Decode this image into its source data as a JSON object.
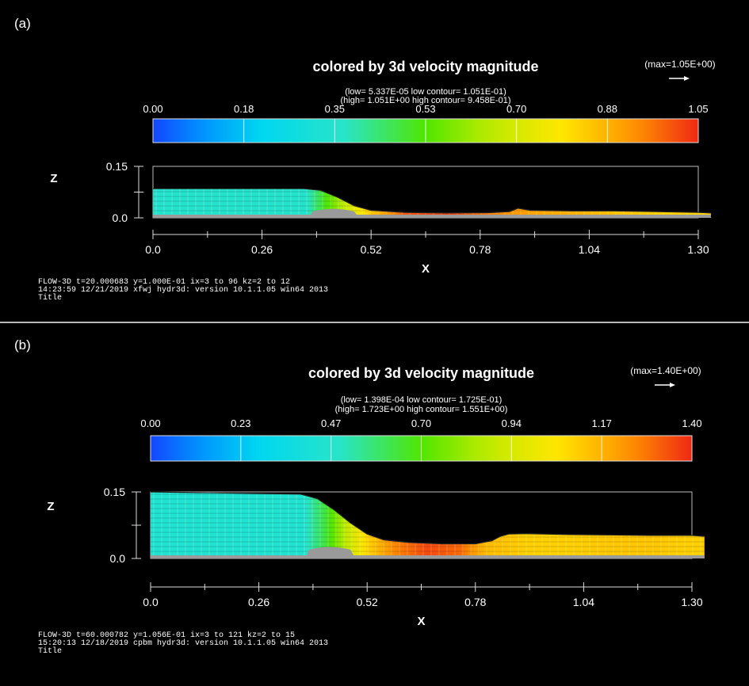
{
  "chart_data": [
    {
      "type": "heatmap",
      "panel_label": "(a)",
      "title": "colored by 3d velocity magnitude",
      "max_label": "(max=1.05E+00)",
      "range_line1": "(low= 5.337E-05   low contour= 1.051E-01)",
      "range_line2": "(high= 1.051E+00  high contour= 9.458E-01)",
      "colorbar_ticks": [
        "0.00",
        "0.18",
        "0.35",
        "0.53",
        "0.70",
        "0.88",
        "1.05"
      ],
      "colorbar_range": [
        0,
        1.05
      ],
      "xlabel": "X",
      "ylabel": "Z",
      "x_ticks": [
        "0.0",
        "0.26",
        "0.52",
        "0.78",
        "1.04",
        "1.30"
      ],
      "z_ticks": [
        "0.15",
        "0.0"
      ],
      "xlim": [
        0,
        1.3
      ],
      "zlim": [
        0,
        0.15
      ],
      "free_surface_x": [
        0,
        0.36,
        0.4,
        0.44,
        0.48,
        0.52,
        0.6,
        0.7,
        0.8,
        0.85,
        0.87,
        0.9,
        1.0,
        1.1,
        1.2,
        1.3,
        1.33
      ],
      "free_surface_z": [
        0.085,
        0.085,
        0.08,
        0.06,
        0.035,
        0.022,
        0.016,
        0.014,
        0.015,
        0.018,
        0.028,
        0.022,
        0.02,
        0.02,
        0.018,
        0.016,
        0.014
      ],
      "velocity_x": [
        0,
        0.36,
        0.42,
        0.47,
        0.52,
        0.6,
        0.7,
        0.8,
        0.9,
        1.0,
        1.1,
        1.2,
        1.3
      ],
      "velocity": [
        0.35,
        0.35,
        0.55,
        0.72,
        0.85,
        1.0,
        1.02,
        0.95,
        0.9,
        0.88,
        0.85,
        0.83,
        0.82
      ],
      "footer_line1": "FLOW-3D  t=20.000683  y=1.000E-01  ix=3 to 96  kz=2 to 12",
      "footer_line2": "14:23:59  12/21/2019 xfwj      hydr3d:   version  10.1.1.05 win64 2013",
      "footer_line3": "Title"
    },
    {
      "type": "heatmap",
      "panel_label": "(b)",
      "title": "colored by 3d velocity magnitude",
      "max_label": "(max=1.40E+00)",
      "range_line1": "(low= 1.398E-04   low contour= 1.725E-01)",
      "range_line2": "(high= 1.723E+00  high contour= 1.551E+00)",
      "colorbar_ticks": [
        "0.00",
        "0.23",
        "0.47",
        "0.70",
        "0.94",
        "1.17",
        "1.40"
      ],
      "colorbar_range": [
        0,
        1.4
      ],
      "xlabel": "X",
      "ylabel": "Z",
      "x_ticks": [
        "0.0",
        "0.26",
        "0.52",
        "0.78",
        "1.04",
        "1.30"
      ],
      "z_ticks": [
        "0.15",
        "0.0"
      ],
      "xlim": [
        0,
        1.3
      ],
      "zlim": [
        0,
        0.15
      ],
      "free_surface_x": [
        0,
        0.36,
        0.4,
        0.44,
        0.48,
        0.52,
        0.56,
        0.62,
        0.7,
        0.78,
        0.82,
        0.84,
        0.86,
        0.9,
        1.0,
        1.1,
        1.2,
        1.3,
        1.33
      ],
      "free_surface_z": [
        0.15,
        0.145,
        0.135,
        0.11,
        0.08,
        0.055,
        0.042,
        0.036,
        0.033,
        0.033,
        0.04,
        0.05,
        0.055,
        0.056,
        0.054,
        0.053,
        0.052,
        0.052,
        0.05
      ],
      "velocity_x": [
        0,
        0.36,
        0.42,
        0.47,
        0.52,
        0.58,
        0.66,
        0.74,
        0.8,
        0.9,
        1.0,
        1.1,
        1.2,
        1.3
      ],
      "velocity": [
        0.45,
        0.45,
        0.65,
        0.9,
        1.1,
        1.25,
        1.35,
        1.3,
        1.15,
        1.1,
        1.1,
        1.12,
        1.12,
        1.1
      ],
      "footer_line1": "FLOW-3D  t=60.000782  y=1.056E-01  ix=3 to 121  kz=2 to 15",
      "footer_line2": "15:20:13  12/18/2019 cpbm      hydr3d:   version  10.1.1.05 win64 2013",
      "footer_line3": "Title"
    }
  ]
}
